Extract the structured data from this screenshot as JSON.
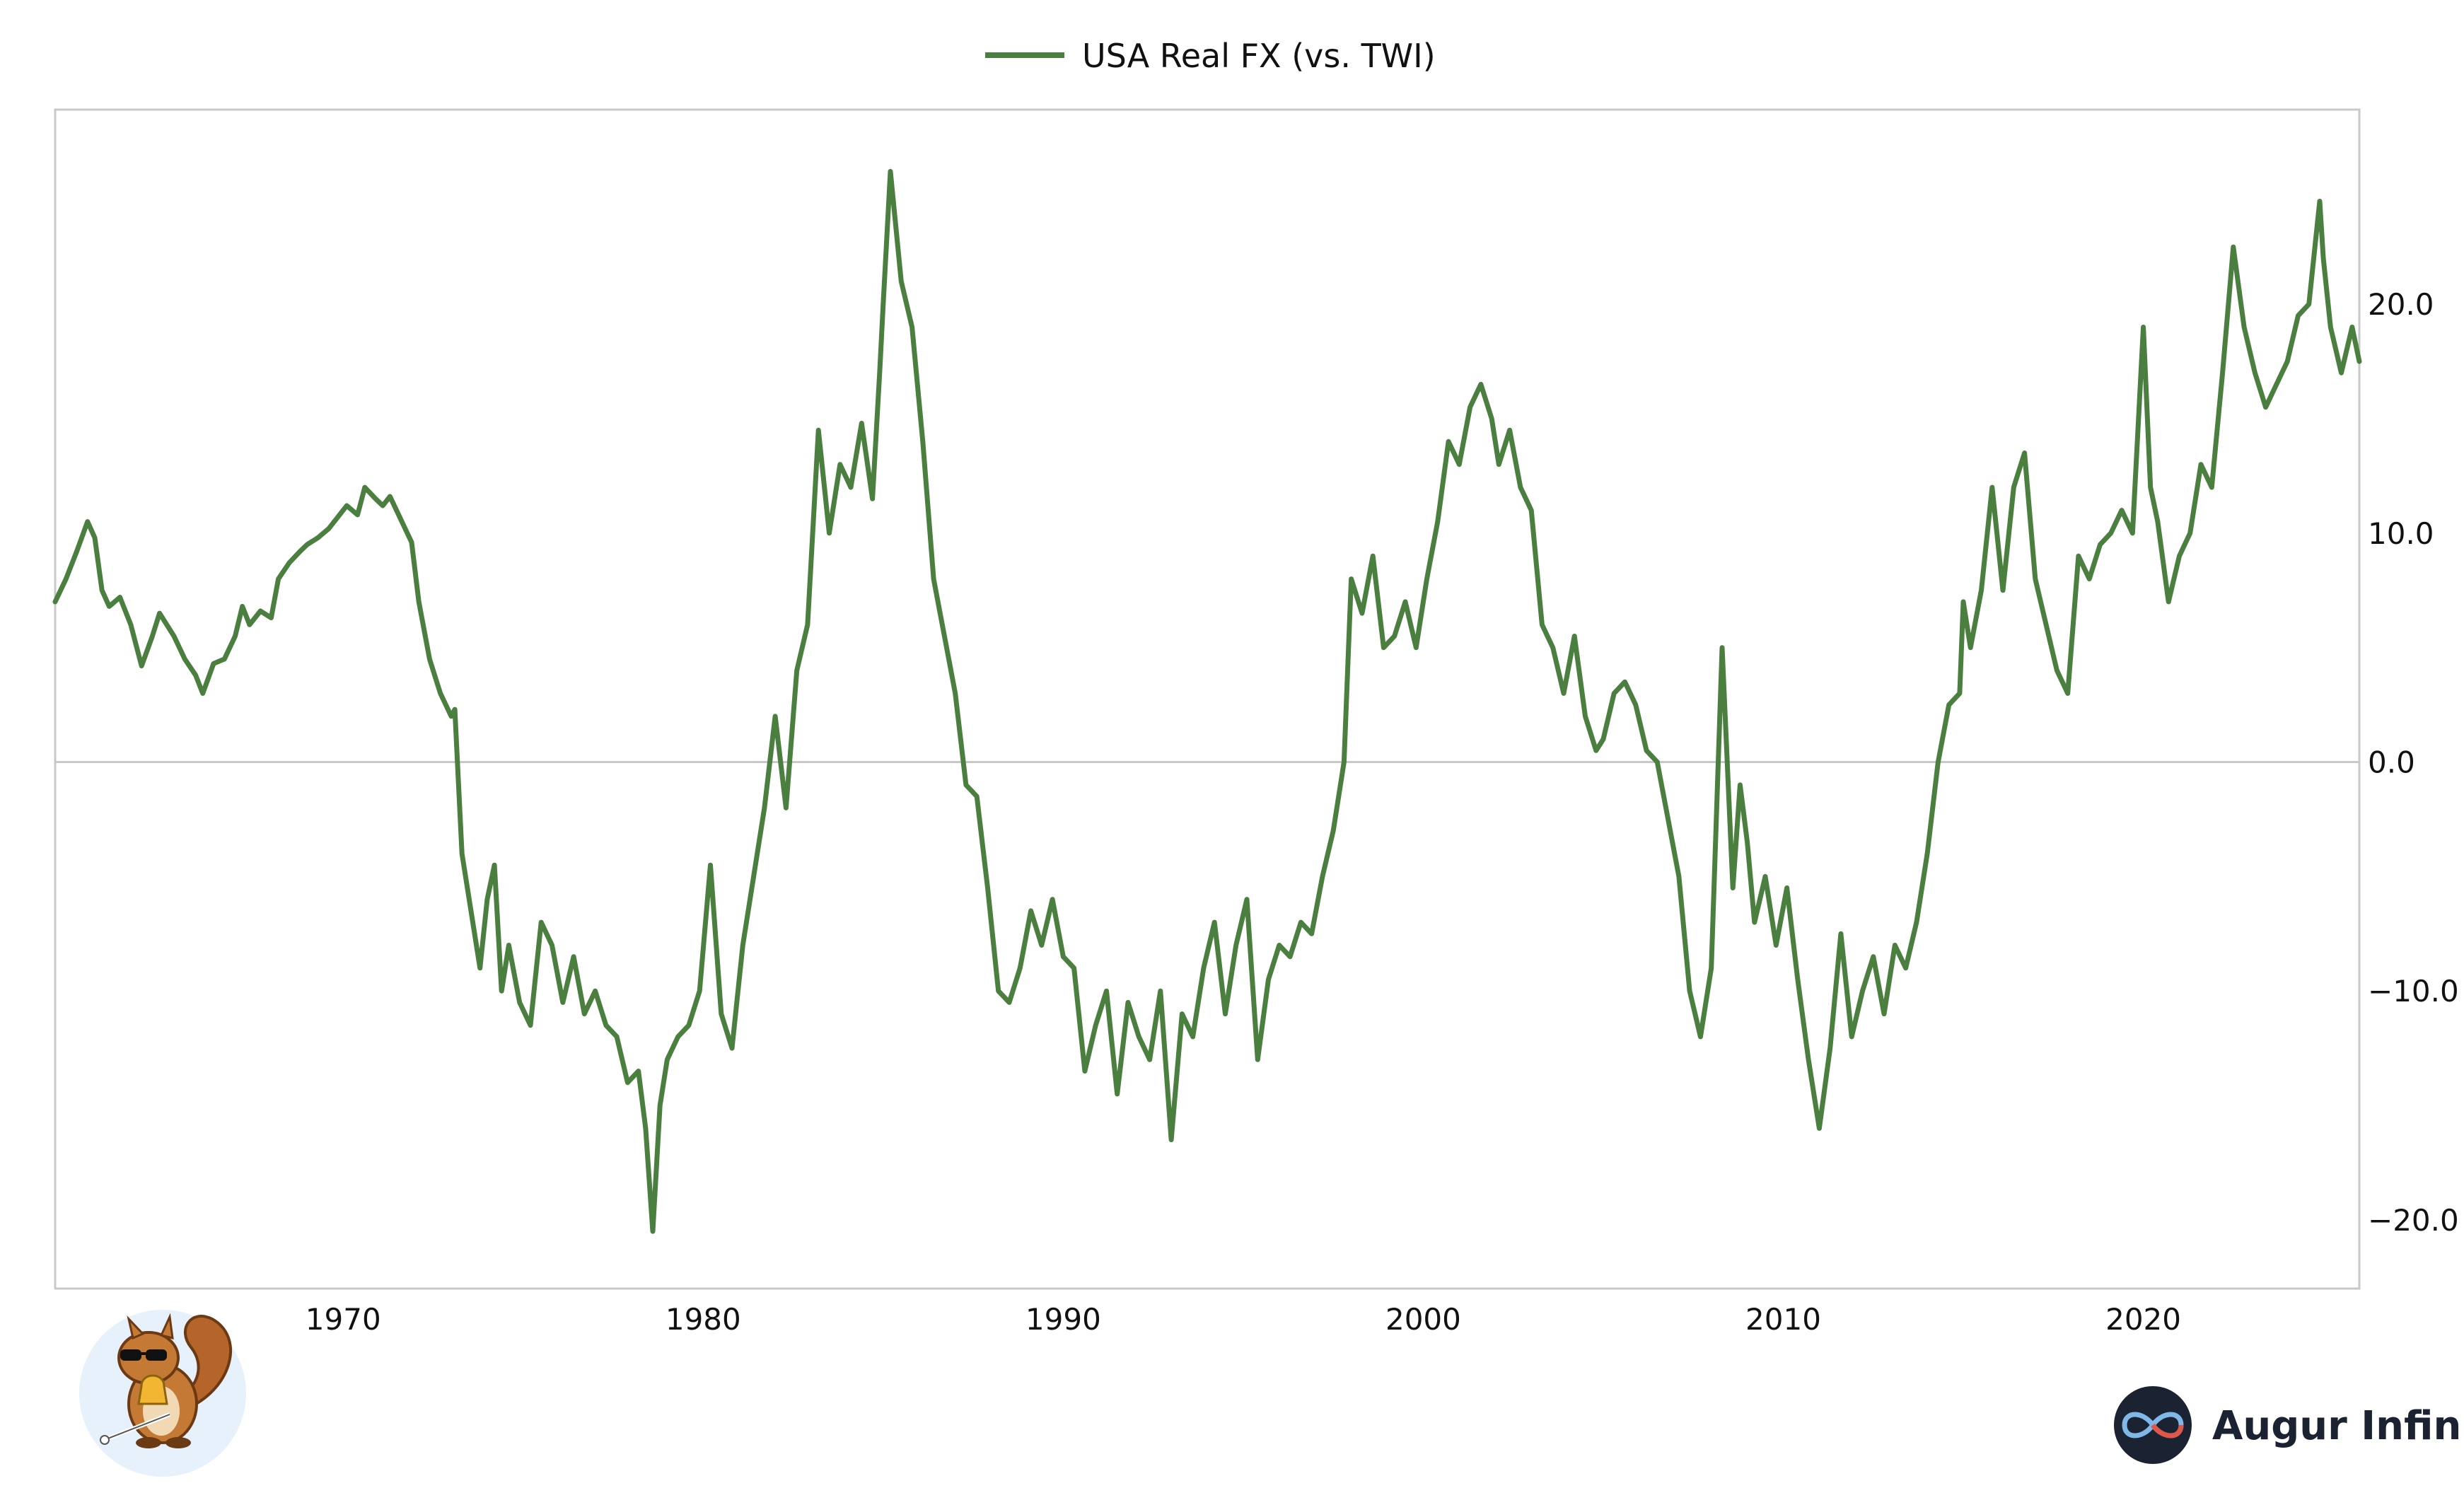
{
  "brand": {
    "name": "Augur Infinity"
  },
  "colors": {
    "series": "#4b7f3f",
    "axis": "#c8c8c8",
    "zero_line": "#c8c8c8",
    "logo_bg": "#1b2333",
    "mascot_bg": "#e7f1fb"
  },
  "chart_data": {
    "type": "line",
    "title": "",
    "xlabel": "",
    "ylabel": "",
    "legend_position": "top-center",
    "grid": false,
    "xlim": [
      1962.0,
      2026.0
    ],
    "ylim": [
      -23.0,
      28.5
    ],
    "x_ticks": [
      1970,
      1980,
      1990,
      2000,
      2010,
      2020
    ],
    "x_tick_labels": [
      "1970",
      "1980",
      "1990",
      "2000",
      "2010",
      "2020"
    ],
    "y_ticks": [
      20,
      10,
      0,
      -10,
      -20
    ],
    "y_tick_labels": [
      "20.0",
      "10.0",
      "0.0",
      "−10.0",
      "−20.0"
    ],
    "reference_line": {
      "y": 0
    },
    "series": [
      {
        "name": "USA Real FX (vs. TWI)",
        "x": [
          1962.0,
          1962.3,
          1962.6,
          1962.9,
          1963.1,
          1963.3,
          1963.5,
          1963.8,
          1964.1,
          1964.4,
          1964.7,
          1964.9,
          1965.1,
          1965.3,
          1965.6,
          1965.9,
          1966.1,
          1966.4,
          1966.7,
          1967.0,
          1967.2,
          1967.4,
          1967.7,
          1968.0,
          1968.2,
          1968.5,
          1968.8,
          1969.0,
          1969.3,
          1969.6,
          1969.9,
          1970.1,
          1970.4,
          1970.6,
          1970.9,
          1971.1,
          1971.3,
          1971.6,
          1971.9,
          1972.1,
          1972.4,
          1972.7,
          1973.0,
          1973.1,
          1973.3,
          1973.5,
          1973.8,
          1974.0,
          1974.2,
          1974.4,
          1974.6,
          1974.9,
          1975.2,
          1975.5,
          1975.8,
          1976.1,
          1976.4,
          1976.7,
          1977.0,
          1977.3,
          1977.6,
          1977.9,
          1978.2,
          1978.4,
          1978.6,
          1978.8,
          1979.0,
          1979.3,
          1979.6,
          1979.9,
          1980.2,
          1980.5,
          1980.8,
          1981.1,
          1981.4,
          1981.7,
          1982.0,
          1982.3,
          1982.6,
          1982.9,
          1983.2,
          1983.5,
          1983.8,
          1984.1,
          1984.4,
          1984.7,
          1984.9,
          1985.0,
          1985.2,
          1985.5,
          1985.8,
          1986.1,
          1986.4,
          1986.7,
          1987.0,
          1987.3,
          1987.6,
          1987.9,
          1988.2,
          1988.5,
          1988.8,
          1989.1,
          1989.4,
          1989.7,
          1990.0,
          1990.3,
          1990.6,
          1990.9,
          1991.2,
          1991.5,
          1991.8,
          1992.1,
          1992.4,
          1992.7,
          1993.0,
          1993.3,
          1993.6,
          1993.9,
          1994.2,
          1994.5,
          1994.8,
          1995.1,
          1995.4,
          1995.7,
          1996.0,
          1996.3,
          1996.6,
          1996.9,
          1997.2,
          1997.5,
          1997.8,
          1998.0,
          1998.3,
          1998.6,
          1998.9,
          1999.2,
          1999.5,
          1999.8,
          2000.1,
          2000.4,
          2000.7,
          2001.0,
          2001.3,
          2001.6,
          2001.9,
          2002.1,
          2002.4,
          2002.7,
          2003.0,
          2003.3,
          2003.6,
          2003.9,
          2004.2,
          2004.5,
          2004.8,
          2005.0,
          2005.3,
          2005.6,
          2005.9,
          2006.2,
          2006.5,
          2006.8,
          2007.1,
          2007.4,
          2007.7,
          2008.0,
          2008.3,
          2008.6,
          2008.8,
          2009.0,
          2009.2,
          2009.5,
          2009.8,
          2010.1,
          2010.4,
          2010.7,
          2011.0,
          2011.3,
          2011.6,
          2011.9,
          2012.2,
          2012.5,
          2012.8,
          2013.1,
          2013.4,
          2013.7,
          2014.0,
          2014.3,
          2014.6,
          2014.9,
          2015.0,
          2015.2,
          2015.5,
          2015.8,
          2016.1,
          2016.4,
          2016.7,
          2017.0,
          2017.3,
          2017.6,
          2017.9,
          2018.2,
          2018.5,
          2018.8,
          2019.1,
          2019.4,
          2019.7,
          2020.0,
          2020.2,
          2020.4,
          2020.7,
          2021.0,
          2021.3,
          2021.6,
          2021.9,
          2022.2,
          2022.5,
          2022.8,
          2023.1,
          2023.4,
          2023.7,
          2024.0,
          2024.3,
          2024.6,
          2024.9,
          2025.0,
          2025.2,
          2025.5,
          2025.8,
          2026.0
        ],
        "y": [
          7.0,
          8.0,
          9.2,
          10.5,
          9.8,
          7.5,
          6.8,
          7.2,
          6.0,
          4.2,
          5.5,
          6.5,
          6.0,
          5.5,
          4.5,
          3.8,
          3.0,
          4.3,
          4.5,
          5.5,
          6.8,
          6.0,
          6.6,
          6.3,
          8.0,
          8.7,
          9.2,
          9.5,
          9.8,
          10.2,
          10.8,
          11.2,
          10.8,
          12.0,
          11.5,
          11.2,
          11.6,
          10.6,
          9.6,
          7.0,
          4.5,
          3.0,
          2.0,
          2.3,
          -4.0,
          -6.0,
          -9.0,
          -6.0,
          -4.5,
          -10.0,
          -8.0,
          -10.5,
          -11.5,
          -7.0,
          -8.0,
          -10.5,
          -8.5,
          -11.0,
          -10.0,
          -11.5,
          -12.0,
          -14.0,
          -13.5,
          -16.0,
          -20.5,
          -15.0,
          -13.0,
          -12.0,
          -11.5,
          -10.0,
          -4.5,
          -11.0,
          -12.5,
          -8.0,
          -5.0,
          -2.0,
          2.0,
          -2.0,
          4.0,
          6.0,
          14.5,
          10.0,
          13.0,
          12.0,
          14.8,
          11.5,
          17.0,
          20.0,
          25.8,
          21.0,
          19.0,
          14.0,
          8.0,
          5.5,
          3.0,
          -1.0,
          -1.5,
          -5.5,
          -10.0,
          -10.5,
          -9.0,
          -6.5,
          -8.0,
          -6.0,
          -8.5,
          -9.0,
          -13.5,
          -11.5,
          -10.0,
          -14.5,
          -10.5,
          -12.0,
          -13.0,
          -10.0,
          -16.5,
          -11.0,
          -12.0,
          -9.0,
          -7.0,
          -11.0,
          -8.0,
          -6.0,
          -13.0,
          -9.5,
          -8.0,
          -8.5,
          -7.0,
          -7.5,
          -5.0,
          -3.0,
          0.0,
          8.0,
          6.5,
          9.0,
          5.0,
          5.5,
          7.0,
          5.0,
          8.0,
          10.5,
          14.0,
          13.0,
          15.5,
          16.5,
          15.0,
          13.0,
          14.5,
          12.0,
          11.0,
          6.0,
          5.0,
          3.0,
          5.5,
          2.0,
          0.5,
          1.0,
          3.0,
          3.5,
          2.5,
          0.5,
          0.0,
          -2.5,
          -5.0,
          -10.0,
          -12.0,
          -9.0,
          5.0,
          -5.5,
          -1.0,
          -3.5,
          -7.0,
          -5.0,
          -8.0,
          -5.5,
          -9.5,
          -13.0,
          -16.0,
          -12.5,
          -7.5,
          -12.0,
          -10.0,
          -8.5,
          -11.0,
          -8.0,
          -9.0,
          -7.0,
          -4.0,
          0.0,
          2.5,
          3.0,
          7.0,
          5.0,
          7.5,
          12.0,
          7.5,
          12.0,
          13.5,
          8.0,
          6.0,
          4.0,
          3.0,
          9.0,
          8.0,
          9.5,
          10.0,
          11.0,
          10.0,
          19.0,
          12.0,
          10.5,
          7.0,
          9.0,
          10.0,
          13.0,
          12.0,
          17.0,
          22.5,
          19.0,
          17.0,
          15.5,
          16.5,
          17.5,
          19.5,
          20.0,
          24.5,
          22.0,
          19.0,
          17.0,
          19.0,
          17.5
        ]
      }
    ]
  }
}
